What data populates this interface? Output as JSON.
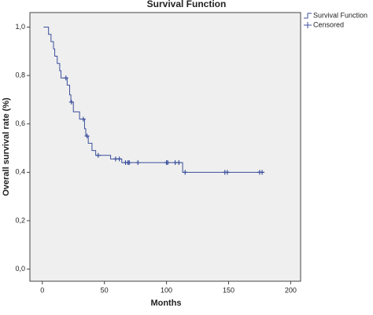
{
  "chart_data": {
    "type": "survival",
    "title": "Survival Function",
    "x_label": "Months",
    "y_label": "Overall survival rate (%)",
    "xlim": [
      -10,
      208
    ],
    "ylim": [
      -0.05,
      1.06
    ],
    "xticks": [
      0,
      50,
      100,
      150,
      200
    ],
    "yticks": [
      {
        "value": 0,
        "label": "0,0"
      },
      {
        "value": 0.2,
        "label": "0,2"
      },
      {
        "value": 0.4,
        "label": "0,4"
      },
      {
        "value": 0.6,
        "label": "0,6"
      },
      {
        "value": 0.8,
        "label": "0,8"
      },
      {
        "value": 1,
        "label": "1,0"
      }
    ],
    "legend": "outside-top-right",
    "series": [
      {
        "name": "Survival Function",
        "color": "#3b4f9c",
        "step": "post",
        "x": [
          1,
          5,
          7,
          9,
          10,
          12,
          14,
          15,
          20,
          22,
          23,
          25,
          30,
          34,
          35,
          37,
          40,
          43,
          55,
          64,
          113,
          177
        ],
        "values": [
          1.0,
          0.97,
          0.94,
          0.91,
          0.88,
          0.85,
          0.82,
          0.79,
          0.76,
          0.72,
          0.69,
          0.65,
          0.62,
          0.58,
          0.55,
          0.52,
          0.49,
          0.47,
          0.455,
          0.44,
          0.4,
          0.4
        ]
      },
      {
        "name": "Censored",
        "color": "#3b4f9c",
        "marker": "plus",
        "x": [
          19,
          23.5,
          33,
          36,
          45,
          59,
          62,
          67,
          69,
          70,
          77,
          100,
          101,
          107,
          110,
          115,
          147,
          149,
          175,
          177
        ],
        "values": [
          0.79,
          0.69,
          0.62,
          0.55,
          0.47,
          0.455,
          0.455,
          0.44,
          0.44,
          0.44,
          0.44,
          0.44,
          0.44,
          0.44,
          0.44,
          0.4,
          0.4,
          0.4,
          0.4,
          0.4
        ]
      }
    ]
  }
}
